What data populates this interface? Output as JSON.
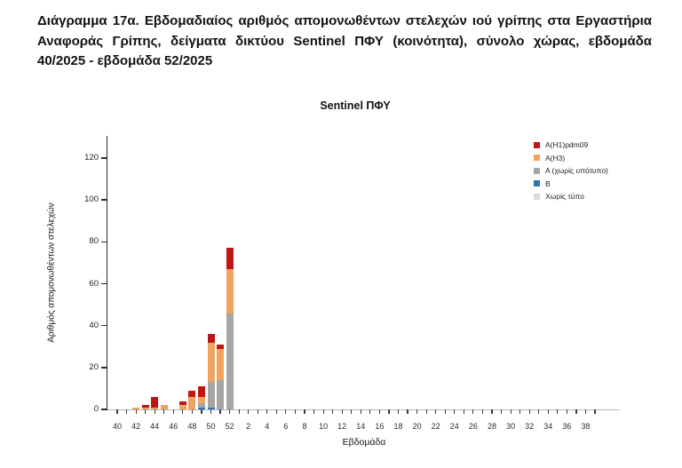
{
  "page": {
    "background": "#ffffff"
  },
  "caption": {
    "text": "Διάγραμμα 17α. Εβδομαδιαίος αριθμός απομονωθέντων στελεχών ιού γρίπης στα Εργαστήρια Αναφοράς Γρίπης, δείγματα δικτύου Sentinel ΠΦΥ (κοινότητα), σύνολο χώρας, εβδομάδα 40/2025 - εβδομάδα 52/2025"
  },
  "chart_data": {
    "type": "bar",
    "stacked": true,
    "title": "Sentinel ΠΦΥ",
    "xlabel": "Εβδομάδα",
    "ylabel": "Αριθμός απομονωθέντων στελεχών",
    "ylim": [
      0,
      130
    ],
    "yticks": [
      0,
      20,
      40,
      60,
      80,
      100,
      120
    ],
    "grid": false,
    "legend_position": "top-right",
    "x_tick_label_rule": "even week numbers only",
    "x_tick_labels_shown": [
      "40",
      "42",
      "44",
      "46",
      "48",
      "50",
      "52",
      "2",
      "4",
      "6",
      "8",
      "10",
      "12",
      "14",
      "16",
      "18",
      "20",
      "22",
      "24",
      "26",
      "28",
      "30",
      "32",
      "34",
      "36",
      "38"
    ],
    "categories": [
      "40",
      "41",
      "42",
      "43",
      "44",
      "45",
      "46",
      "47",
      "48",
      "49",
      "50",
      "51",
      "52",
      "1",
      "2",
      "3",
      "4",
      "5",
      "6",
      "7",
      "8",
      "9",
      "10",
      "11",
      "12",
      "13",
      "14",
      "15",
      "16",
      "17",
      "18",
      "19",
      "20",
      "21",
      "22",
      "23",
      "24",
      "25",
      "26",
      "27",
      "28",
      "29",
      "30",
      "31",
      "32",
      "33",
      "34",
      "35",
      "36",
      "37",
      "38",
      "39"
    ],
    "series": [
      {
        "name": "A(H1)pdm09",
        "color": "#c01515",
        "values": [
          0,
          0,
          0,
          1,
          5,
          0,
          0,
          2,
          3,
          5,
          4,
          2,
          10,
          0,
          0,
          0,
          0,
          0,
          0,
          0,
          0,
          0,
          0,
          0,
          0,
          0,
          0,
          0,
          0,
          0,
          0,
          0,
          0,
          0,
          0,
          0,
          0,
          0,
          0,
          0,
          0,
          0,
          0,
          0,
          0,
          0,
          0,
          0,
          0,
          0,
          0,
          0
        ]
      },
      {
        "name": "A(H3)",
        "color": "#f0a35e",
        "values": [
          0,
          0,
          1,
          1,
          1,
          2,
          0,
          2,
          6,
          3,
          19,
          15,
          21,
          0,
          0,
          0,
          0,
          0,
          0,
          0,
          0,
          0,
          0,
          0,
          0,
          0,
          0,
          0,
          0,
          0,
          0,
          0,
          0,
          0,
          0,
          0,
          0,
          0,
          0,
          0,
          0,
          0,
          0,
          0,
          0,
          0,
          0,
          0,
          0,
          0,
          0,
          0
        ]
      },
      {
        "name": "A (χωρίς υπότυπο)",
        "color": "#a6a6a6",
        "values": [
          0,
          0,
          0,
          0,
          0,
          0,
          0,
          0,
          0,
          2,
          12,
          14,
          46,
          0,
          0,
          0,
          0,
          0,
          0,
          0,
          0,
          0,
          0,
          0,
          0,
          0,
          0,
          0,
          0,
          0,
          0,
          0,
          0,
          0,
          0,
          0,
          0,
          0,
          0,
          0,
          0,
          0,
          0,
          0,
          0,
          0,
          0,
          0,
          0,
          0,
          0,
          0
        ]
      },
      {
        "name": "B",
        "color": "#2e75b6",
        "values": [
          0,
          0,
          0,
          0,
          0,
          0,
          0,
          0,
          0,
          1,
          1,
          0,
          0,
          0,
          0,
          0,
          0,
          0,
          0,
          0,
          0,
          0,
          0,
          0,
          0,
          0,
          0,
          0,
          0,
          0,
          0,
          0,
          0,
          0,
          0,
          0,
          0,
          0,
          0,
          0,
          0,
          0,
          0,
          0,
          0,
          0,
          0,
          0,
          0,
          0,
          0,
          0
        ]
      },
      {
        "name": "Χωρίς τύπο",
        "color": "#d9d9d9",
        "values": [
          0,
          0,
          0,
          0,
          0,
          0,
          0,
          0,
          0,
          0,
          0,
          0,
          0,
          0,
          0,
          0,
          0,
          0,
          0,
          0,
          0,
          0,
          0,
          0,
          0,
          0,
          0,
          0,
          0,
          0,
          0,
          0,
          0,
          0,
          0,
          0,
          0,
          0,
          0,
          0,
          0,
          0,
          0,
          0,
          0,
          0,
          0,
          0,
          0,
          0,
          0,
          0
        ]
      }
    ]
  }
}
